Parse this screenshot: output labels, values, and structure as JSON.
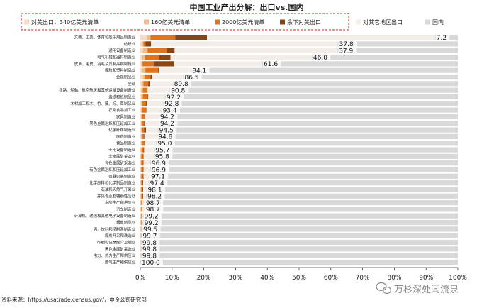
{
  "source_note": "资料来源：https://usatrade.census.gov/，中金公司研究部",
  "watermark": "万杉深处闻流泉",
  "watermark_icon": "wechat-icon",
  "chart_data": {
    "type": "bar",
    "orientation": "horizontal",
    "stacked": true,
    "title": "中国工业产出分解：出口vs.国内",
    "xlim": [
      0,
      100
    ],
    "x_ticks": [
      "0%",
      "10%",
      "20%",
      "30%",
      "40%",
      "50%",
      "60%",
      "70%",
      "80%",
      "90%",
      "100%"
    ],
    "legend_position": "top",
    "grid": false,
    "categories": [
      "文教、工美、体育和娱乐用品制造业",
      "纺织业",
      "通用设备制造业",
      "电气机械和器材制造业",
      "皮革、毛皮、羽毛及其制品和制鞋业",
      "橡胶和塑料制品业",
      "金属制品业",
      "全部",
      "铁路、船舶、航空航天和其他运输设备制造业",
      "造纸和纸制品业",
      "木材加工和木、竹、藤、棕、草制品业",
      "农副食品加工业",
      "家具制造业",
      "黑色金属冶炼和压延加工业",
      "化学纤维制造业",
      "医药制造业",
      "食品制造业",
      "专用设备制造业",
      "非金属矿采选业",
      "有色金属矿采选业",
      "有色金属冶炼和压延加工业",
      "仪器仪表制造业",
      "化学原料和化学制品制造业",
      "石油和天然气开采业",
      "开采专业及辅助性活动",
      "水的生产和供应业",
      "汽车制造业",
      "计算机、通信和其他电子设备制造业",
      "烟草制品业",
      "酒、饮料和精制茶制造业",
      "煤炭开采和洗选业",
      "印刷和记录媒介复制业",
      "黑色金属矿采选业",
      "电力、热力生产和供应业",
      "燃气生产和供应业"
    ],
    "domestic_labels": [
      7.2,
      37.8,
      37.9,
      46.0,
      61.6,
      84.1,
      86.5,
      89.8,
      90.8,
      92.2,
      92.8,
      93.4,
      94.2,
      94.2,
      94.5,
      94.8,
      95.0,
      95.7,
      95.8,
      96.9,
      96.9,
      97.1,
      97.4,
      98.1,
      98.2,
      98.7,
      98.7,
      99.2,
      99.2,
      99.5,
      99.7,
      99.8,
      99.8,
      99.8,
      100.0
    ],
    "series": [
      {
        "name": "对美出口：340亿美元清单",
        "color": "#f6dcc6",
        "values": [
          2.0,
          0.4,
          0.8,
          0.6,
          0.3,
          0.6,
          0.8,
          0.4,
          0.3,
          0.3,
          0.3,
          0.2,
          0.2,
          0.2,
          0.2,
          0.2,
          0.2,
          0.1,
          0.1,
          0.1,
          0.1,
          0.1,
          0.1,
          0.1,
          0.1,
          0.1,
          0.1,
          0.1,
          0.1,
          0.1,
          0.1,
          0.1,
          0.1,
          0.1,
          0
        ]
      },
      {
        "name": "160亿美元清单",
        "color": "#f2bb8a",
        "values": [
          1.2,
          0.6,
          1.5,
          0.9,
          0.4,
          1.0,
          0.6,
          0.6,
          0.5,
          0.5,
          0.4,
          0.3,
          0.3,
          0.3,
          0.4,
          0.3,
          0.3,
          0.3,
          0.2,
          0.2,
          0.2,
          0.2,
          0.2,
          0.2,
          0.2,
          0.2,
          0.2,
          0.2,
          0.2,
          0.2,
          0.1,
          0.1,
          0.1,
          0.1,
          0
        ]
      },
      {
        "name": "2000亿美元清单",
        "color": "#e0731e",
        "values": [
          7.8,
          0.6,
          6.0,
          4.5,
          3.5,
          4.0,
          1.8,
          1.5,
          1.2,
          1.5,
          1.0,
          1.2,
          0.8,
          0.7,
          0.6,
          0.6,
          0.6,
          0.6,
          0.5,
          0.5,
          0.5,
          0.5,
          0.4,
          0.4,
          0.4,
          0.3,
          0.3,
          0.2,
          0.2,
          0.1,
          0.1,
          0.0,
          0.0,
          0.0,
          0
        ]
      },
      {
        "name": "余下对美出口",
        "color": "#8b4513",
        "values": [
          10.0,
          1.8,
          2.5,
          3.5,
          6.5,
          0.2,
          0.5,
          0.6,
          0.3,
          0.2,
          0.3,
          0.2,
          0.2,
          0.2,
          0.6,
          0.2,
          0.2,
          0.2,
          0.2,
          0.2,
          0.2,
          0.2,
          0.2,
          0.2,
          0.2,
          0.1,
          0.1,
          0.1,
          0.1,
          0.0,
          0.0,
          0.0,
          0.0,
          0.0,
          0
        ]
      },
      {
        "name": "对其它地区出口",
        "color": "#f3ede7",
        "values": [
          71.8,
          58.8,
          51.3,
          44.5,
          27.7,
          10.1,
          9.8,
          7.1,
          6.9,
          5.3,
          5.2,
          4.7,
          4.3,
          4.4,
          3.7,
          3.9,
          3.7,
          3.1,
          3.2,
          2.1,
          2.1,
          1.9,
          1.7,
          1.0,
          0.9,
          0.6,
          0.6,
          0.2,
          0.2,
          0.1,
          0.0,
          0.0,
          0.0,
          0.0,
          0
        ]
      },
      {
        "name": "国内",
        "color": "#d9d9d9",
        "values": [
          7.2,
          37.8,
          37.9,
          46.0,
          61.6,
          84.1,
          86.5,
          89.8,
          90.8,
          92.2,
          92.8,
          93.4,
          94.2,
          94.2,
          94.5,
          94.8,
          95.0,
          95.7,
          95.8,
          96.9,
          96.9,
          97.1,
          97.4,
          98.1,
          98.2,
          98.7,
          98.7,
          99.2,
          99.2,
          99.5,
          99.7,
          99.8,
          99.8,
          99.8,
          100.0
        ]
      }
    ]
  }
}
